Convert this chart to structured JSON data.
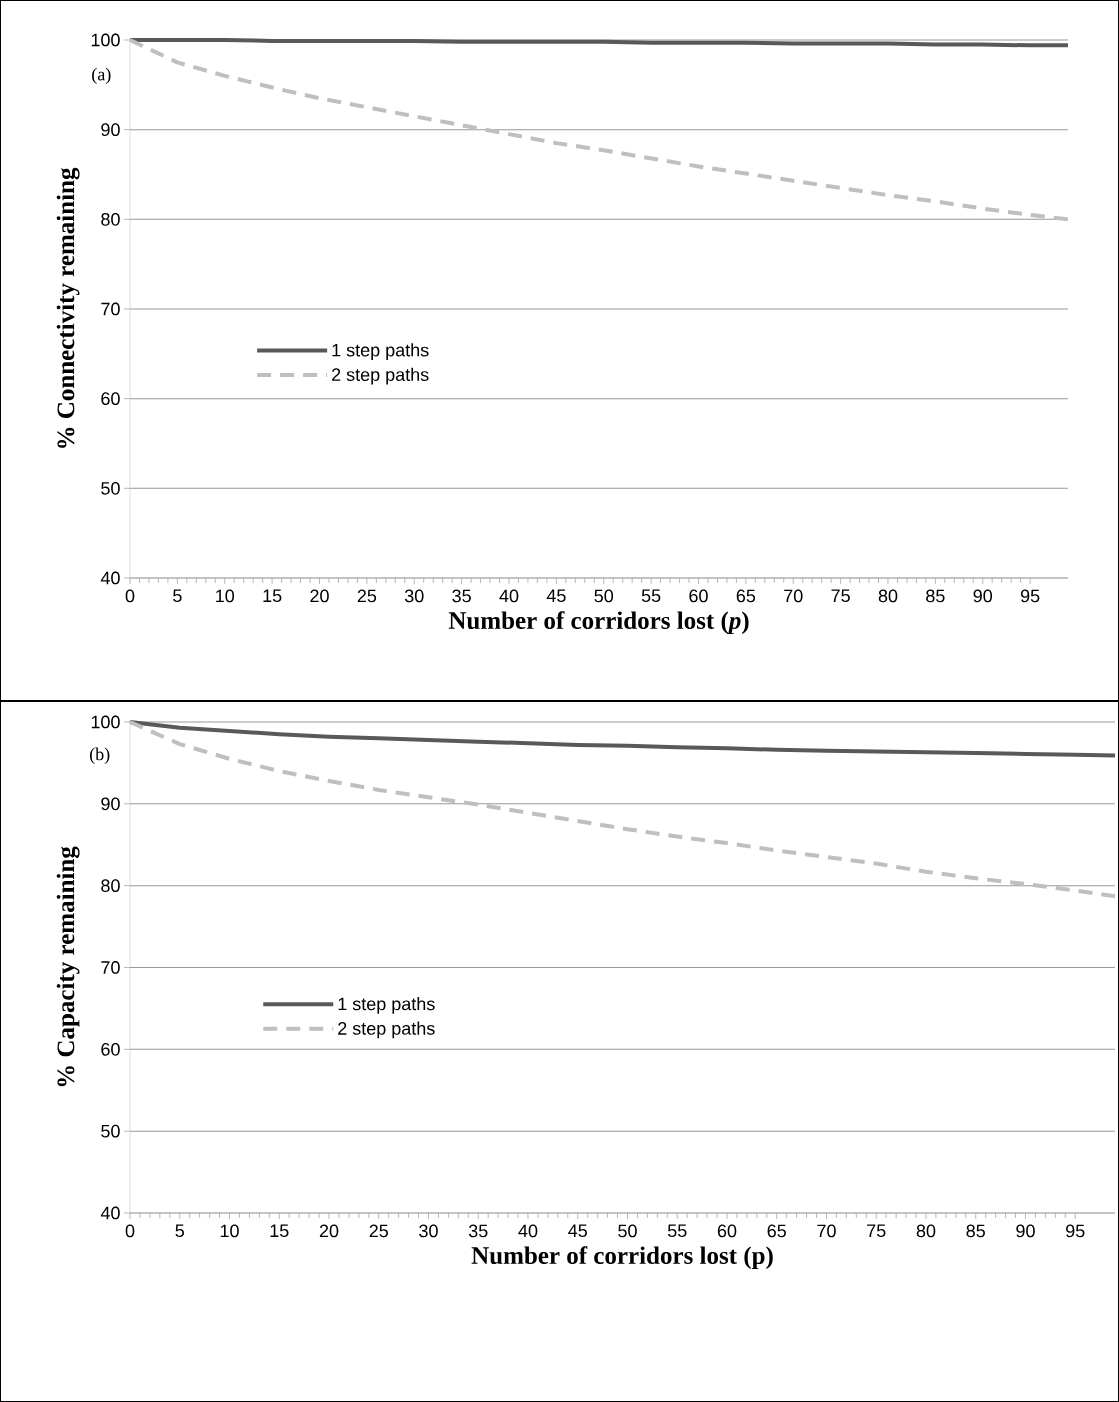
{
  "chart_data": [
    {
      "type": "line",
      "xlabel": "Number of corridors lost (*p*)",
      "ylabel": "% Connectivity remaining",
      "annotations": [
        "(a)"
      ],
      "xlim": [
        0,
        99
      ],
      "xticks": [
        0,
        5,
        10,
        15,
        20,
        25,
        30,
        35,
        40,
        45,
        50,
        55,
        60,
        65,
        70,
        75,
        80,
        85,
        90,
        95
      ],
      "ylim": [
        40,
        100
      ],
      "yticks": [
        40,
        50,
        60,
        70,
        80,
        90,
        100
      ],
      "grid": "y",
      "legend": "center left",
      "x": [
        0,
        5,
        10,
        15,
        20,
        25,
        30,
        35,
        40,
        45,
        50,
        55,
        60,
        65,
        70,
        75,
        80,
        85,
        90,
        95,
        99
      ],
      "series": [
        {
          "name": "1 step paths",
          "color": "#595959",
          "line_style": "solid",
          "values": [
            100,
            100,
            100,
            99.9,
            99.9,
            99.9,
            99.9,
            99.8,
            99.8,
            99.8,
            99.8,
            99.7,
            99.7,
            99.7,
            99.6,
            99.6,
            99.6,
            99.5,
            99.5,
            99.4,
            99.4
          ]
        },
        {
          "name": "2 step paths",
          "color": "#bfbfbf",
          "line_style": "dashed",
          "values": [
            100,
            97.5,
            96,
            94.7,
            93.5,
            92.5,
            91.5,
            90.5,
            89.5,
            88.5,
            87.7,
            86.8,
            85.9,
            85.1,
            84.3,
            83.5,
            82.7,
            82,
            81.2,
            80.5,
            80
          ]
        }
      ]
    },
    {
      "type": "line",
      "xlabel": "Number of corridors lost (p)",
      "ylabel": "% Capacity remaining",
      "annotations": [
        "(b)"
      ],
      "xlim": [
        0,
        99
      ],
      "xticks": [
        0,
        5,
        10,
        15,
        20,
        25,
        30,
        35,
        40,
        45,
        50,
        55,
        60,
        65,
        70,
        75,
        80,
        85,
        90,
        95
      ],
      "ylim": [
        40,
        100
      ],
      "yticks": [
        40,
        50,
        60,
        70,
        80,
        90,
        100
      ],
      "grid": "y",
      "legend": "center left",
      "x": [
        0,
        5,
        10,
        15,
        20,
        25,
        30,
        35,
        40,
        45,
        50,
        55,
        60,
        65,
        70,
        75,
        80,
        85,
        90,
        95,
        99
      ],
      "series": [
        {
          "name": "1 step paths",
          "color": "#595959",
          "line_style": "solid",
          "values": [
            100,
            99.3,
            98.9,
            98.5,
            98.2,
            98,
            97.8,
            97.6,
            97.4,
            97.2,
            97.1,
            96.9,
            96.8,
            96.6,
            96.5,
            96.4,
            96.3,
            96.2,
            96.1,
            96,
            95.9
          ]
        },
        {
          "name": "2 step paths",
          "color": "#bfbfbf",
          "line_style": "dashed",
          "values": [
            100,
            97.3,
            95.5,
            94,
            92.8,
            91.7,
            90.8,
            89.9,
            88.9,
            87.9,
            86.9,
            86,
            85.2,
            84.3,
            83.5,
            82.7,
            81.7,
            80.9,
            80.2,
            79.4,
            78.7
          ]
        }
      ]
    }
  ]
}
